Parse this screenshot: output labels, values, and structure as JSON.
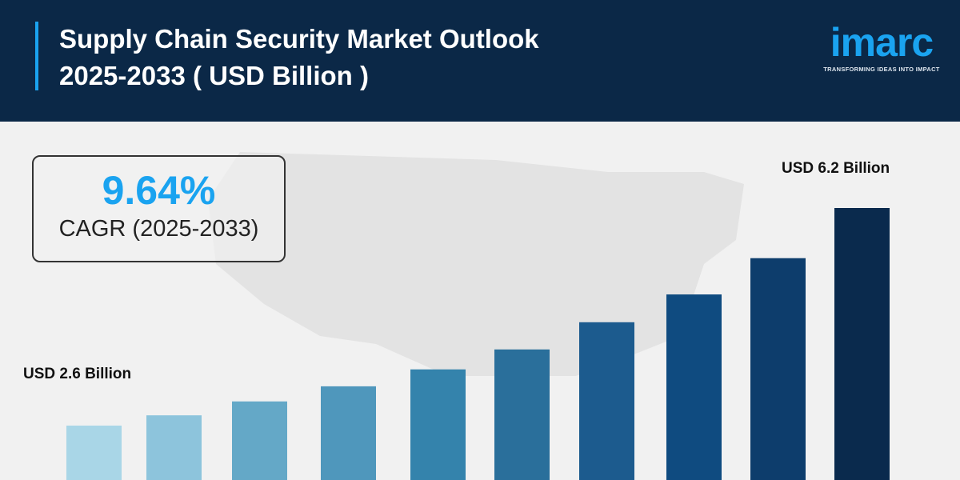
{
  "header": {
    "title_line1": "Supply Chain Security Market Outlook",
    "title_line2": "2025-2033 ( USD Billion )"
  },
  "logo": {
    "word": "imarc",
    "tagline": "TRANSFORMING IDEAS INTO IMPACT",
    "color": "#1aa3f0"
  },
  "cagr": {
    "value": "9.64%",
    "label": "CAGR (2025-2033)"
  },
  "chart_data": {
    "type": "bar",
    "values": [
      2.6,
      2.77,
      3.0,
      3.25,
      3.53,
      3.86,
      4.31,
      4.77,
      5.37,
      6.2
    ],
    "data_labels": {
      "first": "USD 2.6 Billion",
      "last": "USD 6.2 Billion"
    },
    "colors": [
      "#a9d6e7",
      "#8dc4dc",
      "#64a8c7",
      "#4f97bc",
      "#3483ac",
      "#2a6f9b",
      "#1c5b8e",
      "#0f4b80",
      "#0d3d6c",
      "#0a2a4d"
    ],
    "grid": false
  }
}
